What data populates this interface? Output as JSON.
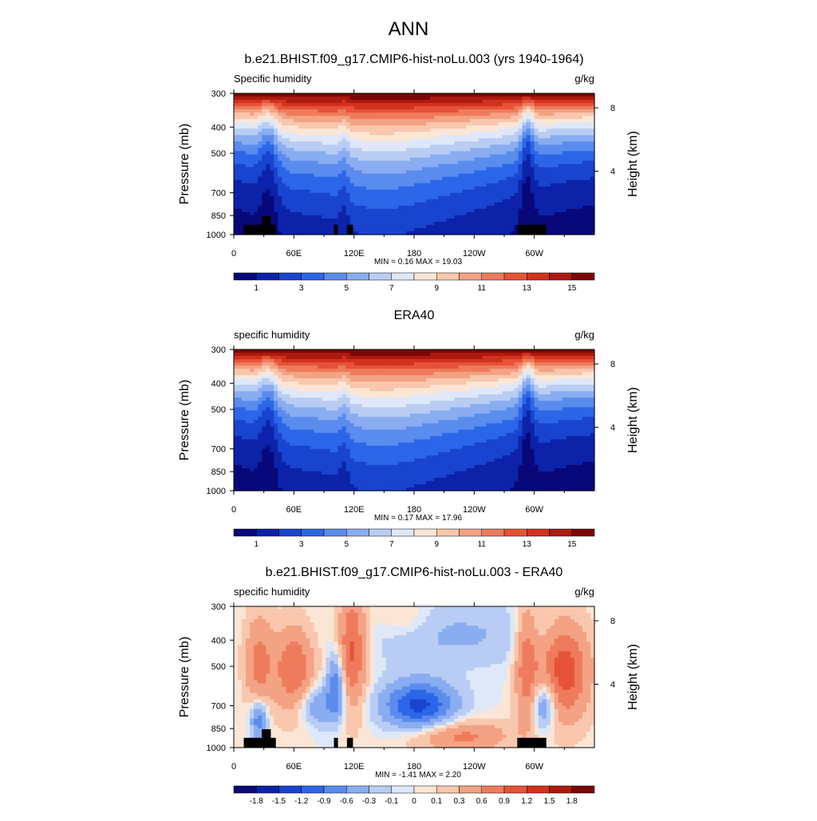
{
  "title": "ANN",
  "chart_data": [
    {
      "type": "heatmap",
      "title": "b.e21.BHIST.f09_g17.CMIP6-hist-noLu.003 (yrs 1940-1964)",
      "variable": "Specific humidity",
      "units": "g/kg",
      "ylabel": "Pressure (mb)",
      "y2label": "Height (km)",
      "yticks": [
        "300",
        "400",
        "500",
        "700",
        "850",
        "1000"
      ],
      "ytick_values": [
        300,
        400,
        500,
        700,
        850,
        1000
      ],
      "y2ticks": [
        "8",
        "4"
      ],
      "y2tick_values": [
        8,
        4
      ],
      "xticks": [
        "0",
        "60E",
        "120E",
        "180",
        "120W",
        "60W"
      ],
      "xtick_values": [
        0,
        60,
        120,
        180,
        240,
        300
      ],
      "xlim": [
        0,
        360
      ],
      "ylim": [
        1000,
        300
      ],
      "stats": "MIN =   0.16  MAX =  19.03",
      "min": 0.16,
      "max": 19.03,
      "colorbar_labels": [
        "1",
        "3",
        "5",
        "7",
        "9",
        "11",
        "13",
        "15"
      ],
      "colorbar_values": [
        0,
        1,
        2,
        3,
        4,
        5,
        6,
        7,
        8,
        9,
        10,
        11,
        12,
        13,
        14,
        15,
        16
      ],
      "colormap": "blue-white-red",
      "terrain_mask": true
    },
    {
      "type": "heatmap",
      "title": "ERA40",
      "variable": "specific humidity",
      "units": "g/kg",
      "ylabel": "Pressure (mb)",
      "y2label": "Height (km)",
      "yticks": [
        "300",
        "400",
        "500",
        "700",
        "850",
        "1000"
      ],
      "ytick_values": [
        300,
        400,
        500,
        700,
        850,
        1000
      ],
      "y2ticks": [
        "8",
        "4"
      ],
      "y2tick_values": [
        8,
        4
      ],
      "xticks": [
        "0",
        "60E",
        "120E",
        "180",
        "120W",
        "60W"
      ],
      "xtick_values": [
        0,
        60,
        120,
        180,
        240,
        300
      ],
      "xlim": [
        0,
        360
      ],
      "ylim": [
        1000,
        300
      ],
      "stats": "MIN =   0.17  MAX =  17.96",
      "min": 0.17,
      "max": 17.96,
      "colorbar_labels": [
        "1",
        "3",
        "5",
        "7",
        "9",
        "11",
        "13",
        "15"
      ],
      "colorbar_values": [
        0,
        1,
        2,
        3,
        4,
        5,
        6,
        7,
        8,
        9,
        10,
        11,
        12,
        13,
        14,
        15,
        16
      ],
      "colormap": "blue-white-red",
      "terrain_mask": false
    },
    {
      "type": "heatmap",
      "title": "b.e21.BHIST.f09_g17.CMIP6-hist-noLu.003 - ERA40",
      "variable": "specific humidity",
      "units": "g/kg",
      "ylabel": "Pressure (mb)",
      "y2label": "Height (km)",
      "yticks": [
        "300",
        "400",
        "500",
        "700",
        "850",
        "1000"
      ],
      "ytick_values": [
        300,
        400,
        500,
        700,
        850,
        1000
      ],
      "y2ticks": [
        "8",
        "4"
      ],
      "y2tick_values": [
        8,
        4
      ],
      "xticks": [
        "0",
        "60E",
        "120E",
        "180",
        "120W",
        "60W"
      ],
      "xtick_values": [
        0,
        60,
        120,
        180,
        240,
        300
      ],
      "xlim": [
        0,
        360
      ],
      "ylim": [
        1000,
        300
      ],
      "stats": "MIN =  -1.41  MAX =   2.20",
      "min": -1.41,
      "max": 2.2,
      "colorbar_labels": [
        "-1.8",
        "-1.5",
        "-1.2",
        "-0.9",
        "-0.6",
        "-0.3",
        "-0.1",
        "0",
        "0.1",
        "0.3",
        "0.6",
        "0.9",
        "1.2",
        "1.5",
        "1.8"
      ],
      "colorbar_values": [
        -2.1,
        -1.8,
        -1.5,
        -1.2,
        -0.9,
        -0.6,
        -0.3,
        -0.1,
        0,
        0.1,
        0.3,
        0.6,
        0.9,
        1.2,
        1.5,
        1.8,
        2.1
      ],
      "colormap": "blue-white-red",
      "terrain_mask": true
    }
  ],
  "colors": {
    "palette": [
      "#08087a",
      "#0c23a8",
      "#1844cf",
      "#2c66e8",
      "#5a8cee",
      "#8aadf1",
      "#b9cdf4",
      "#dee8f8",
      "#fbe6d6",
      "#f8c7ad",
      "#f3a283",
      "#ee7b5c",
      "#e65336",
      "#d3311e",
      "#ad1a0f",
      "#7d0606"
    ],
    "terrain": "#000000",
    "frame": "#000000"
  }
}
